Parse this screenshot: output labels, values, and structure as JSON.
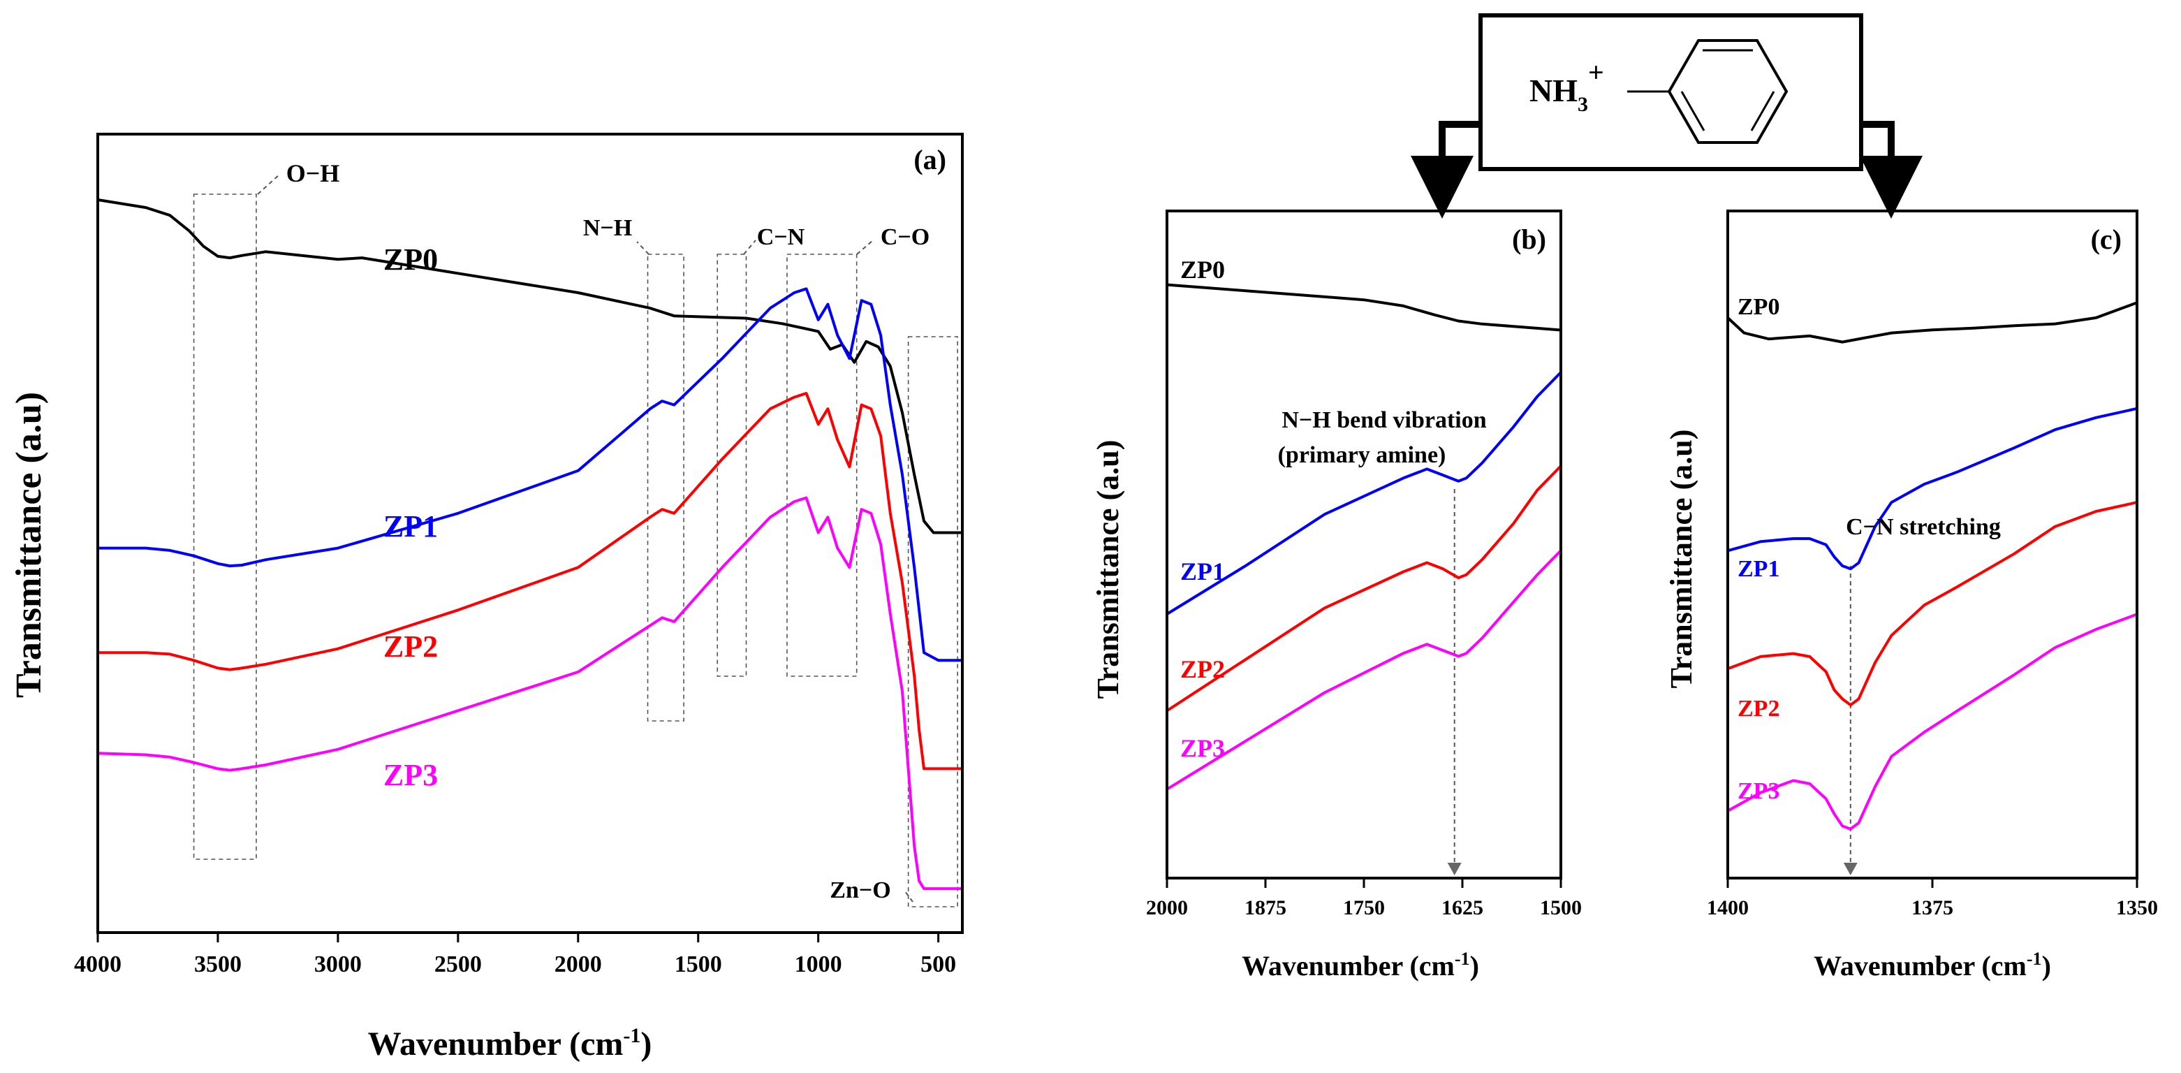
{
  "chart_data": [
    {
      "panel": "(a)",
      "type": "line",
      "xlabel": "Wavenumber (cm",
      "xlabel_sup": "-1",
      "xlabel_tail": ")",
      "ylabel": "Transmittance (a.u)",
      "xlim": [
        4000,
        400
      ],
      "x_reversed": true,
      "ylim": [
        0,
        100
      ],
      "yticks_shown": false,
      "xticks": [
        4000,
        3500,
        3000,
        2500,
        2000,
        1500,
        1000,
        500
      ],
      "series": [
        {
          "name": "ZP0",
          "color": "#000000",
          "x": [
            4000,
            3800,
            3700,
            3620,
            3560,
            3500,
            3450,
            3400,
            3300,
            3000,
            2900,
            2500,
            2000,
            1700,
            1600,
            1300,
            1150,
            1000,
            950,
            900,
            850,
            800,
            750,
            700,
            650,
            600,
            560,
            520,
            480,
            400
          ],
          "y": [
            93.5,
            92.5,
            91.5,
            89.5,
            87.5,
            86.2,
            86,
            86.3,
            86.8,
            85.8,
            86,
            84,
            81.5,
            79.5,
            78.5,
            78.2,
            77.5,
            76.5,
            74.2,
            74.8,
            72.5,
            75.2,
            74.5,
            72,
            66,
            58,
            52,
            50.5,
            50.5,
            50.5
          ]
        },
        {
          "name": "ZP1",
          "color": "#0000ff",
          "x": [
            4000,
            3800,
            3700,
            3600,
            3500,
            3450,
            3400,
            3300,
            3000,
            2500,
            2000,
            1700,
            1650,
            1600,
            1400,
            1200,
            1100,
            1050,
            1000,
            960,
            920,
            870,
            820,
            780,
            740,
            700,
            650,
            600,
            560,
            500,
            400
          ],
          "y": [
            48.5,
            48.5,
            48.2,
            47.5,
            46.5,
            46.2,
            46.3,
            47,
            48.5,
            53,
            58.5,
            66.5,
            67.5,
            67,
            73,
            79.5,
            81.5,
            82,
            78,
            80,
            76,
            73,
            80.5,
            80,
            76,
            67,
            58,
            46,
            35,
            34,
            34
          ]
        },
        {
          "name": "ZP2",
          "color": "#ff0000",
          "x": [
            4000,
            3800,
            3700,
            3600,
            3500,
            3450,
            3400,
            3300,
            3000,
            2500,
            2000,
            1700,
            1650,
            1600,
            1400,
            1200,
            1100,
            1050,
            1000,
            960,
            920,
            870,
            820,
            780,
            740,
            700,
            650,
            600,
            580,
            560,
            500,
            400
          ],
          "y": [
            35,
            35,
            34.8,
            34,
            33,
            32.8,
            33,
            33.5,
            35.5,
            40.5,
            46,
            52.5,
            53.5,
            53,
            60,
            66.5,
            68,
            68.5,
            64.5,
            66.5,
            62.5,
            59,
            67,
            66.5,
            63,
            53,
            44,
            32,
            25,
            20,
            20,
            20
          ]
        },
        {
          "name": "ZP3",
          "color": "#ff00ff",
          "x": [
            4000,
            3800,
            3700,
            3600,
            3500,
            3450,
            3400,
            3300,
            3000,
            2500,
            2000,
            1700,
            1650,
            1600,
            1400,
            1200,
            1100,
            1050,
            1000,
            960,
            920,
            870,
            820,
            780,
            740,
            700,
            650,
            600,
            580,
            560,
            500,
            400
          ],
          "y": [
            22,
            21.8,
            21.5,
            20.8,
            20,
            19.8,
            20,
            20.5,
            22.5,
            27.5,
            32.5,
            38.5,
            39.5,
            39,
            46,
            52.5,
            54.5,
            55,
            50.5,
            52.5,
            48.5,
            46,
            53.5,
            53,
            49,
            40,
            30,
            10,
            5.5,
            4.5,
            4.5,
            4.5
          ]
        }
      ],
      "series_labels": [
        "ZP0",
        "ZP1",
        "ZP2",
        "ZP3"
      ],
      "annotations": [
        {
          "text": "O−H",
          "from": 3600,
          "to": 3340
        },
        {
          "text": "N−H",
          "from": 1710,
          "to": 1560
        },
        {
          "text": "C−N",
          "from": 1420,
          "to": 1300
        },
        {
          "text": "C−O",
          "from": 1130,
          "to": 840
        },
        {
          "text": "Zn−O",
          "from": 625,
          "to": 420
        }
      ]
    },
    {
      "panel": "(b)",
      "type": "line",
      "xlabel": "Wavenumber (cm",
      "xlabel_sup": "-1",
      "xlabel_tail": ")",
      "ylabel": "Transmittance (a.u)",
      "xlim": [
        2000,
        1500
      ],
      "x_reversed": true,
      "ylim": [
        0,
        100
      ],
      "yticks_shown": false,
      "xticks": [
        2000,
        1875,
        1750,
        1625,
        1500
      ],
      "series": [
        {
          "name": "ZP0",
          "color": "#000000",
          "x": [
            2000,
            1900,
            1800,
            1750,
            1700,
            1660,
            1630,
            1600,
            1550,
            1500
          ],
          "y": [
            94.5,
            93.5,
            92.5,
            92,
            91,
            89.5,
            88.5,
            88,
            87.5,
            87
          ]
        },
        {
          "name": "ZP1",
          "color": "#0000ff",
          "x": [
            2000,
            1900,
            1800,
            1700,
            1670,
            1650,
            1630,
            1620,
            1600,
            1560,
            1530,
            1500
          ],
          "y": [
            40,
            48,
            56.5,
            62.5,
            64,
            63,
            62,
            62.5,
            65,
            71,
            76,
            80
          ]
        },
        {
          "name": "ZP2",
          "color": "#ff0000",
          "x": [
            2000,
            1900,
            1800,
            1700,
            1670,
            1650,
            1630,
            1620,
            1600,
            1560,
            1530,
            1500
          ],
          "y": [
            24,
            32.5,
            41,
            47,
            48.5,
            47.5,
            46,
            46.5,
            49,
            55,
            60.5,
            64.5
          ]
        },
        {
          "name": "ZP3",
          "color": "#ff00ff",
          "x": [
            2000,
            1900,
            1800,
            1700,
            1670,
            1650,
            1630,
            1620,
            1600,
            1560,
            1530,
            1500
          ],
          "y": [
            11,
            19,
            27,
            33.5,
            35,
            34,
            33,
            33.5,
            36,
            42,
            46.5,
            50.5
          ]
        }
      ],
      "series_labels": [
        "ZP0",
        "ZP1",
        "ZP2",
        "ZP3"
      ],
      "annotation_line1": "N−H bend vibration",
      "annotation_line2": "(primary amine)",
      "marker_x": 1635
    },
    {
      "panel": "(c)",
      "type": "line",
      "xlabel": "Wavenumber (cm",
      "xlabel_sup": "-1",
      "xlabel_tail": ")",
      "ylabel": "Transmittance (a.u)",
      "xlim": [
        1400,
        1350
      ],
      "x_reversed": true,
      "ylim": [
        0,
        100
      ],
      "yticks_shown": false,
      "xticks": [
        1400,
        1375,
        1350
      ],
      "series": [
        {
          "name": "ZP0",
          "color": "#000000",
          "x": [
            1400,
            1398,
            1395,
            1390,
            1386,
            1380,
            1375,
            1370,
            1365,
            1360,
            1355,
            1352,
            1350
          ],
          "y": [
            89.5,
            87,
            86,
            86.5,
            85.5,
            87,
            87.5,
            87.8,
            88.2,
            88.5,
            89.5,
            91,
            92
          ]
        },
        {
          "name": "ZP1",
          "color": "#0000ff",
          "x": [
            1400,
            1396,
            1392,
            1390,
            1388,
            1387,
            1386,
            1385,
            1384,
            1382,
            1380,
            1376,
            1372,
            1365,
            1360,
            1355,
            1350
          ],
          "y": [
            51,
            52.5,
            53,
            53,
            52,
            50,
            48.5,
            48,
            49,
            55,
            59,
            62,
            64,
            68,
            71,
            73,
            74.5
          ]
        },
        {
          "name": "ZP2",
          "color": "#ff0000",
          "x": [
            1400,
            1396,
            1392,
            1390,
            1388,
            1387,
            1386,
            1385,
            1384,
            1382,
            1380,
            1376,
            1372,
            1365,
            1360,
            1355,
            1350
          ],
          "y": [
            31.5,
            33.5,
            34,
            33.5,
            31,
            28,
            26.5,
            25.5,
            26.5,
            32.5,
            37,
            42,
            45,
            50.5,
            55,
            57.5,
            59
          ]
        },
        {
          "name": "ZP3",
          "color": "#ff00ff",
          "x": [
            1400,
            1396,
            1392,
            1390,
            1388,
            1387,
            1386,
            1385,
            1384,
            1382,
            1380,
            1376,
            1372,
            1365,
            1360,
            1355,
            1350
          ],
          "y": [
            8,
            11,
            13,
            12.5,
            10,
            7.5,
            5.5,
            5,
            6,
            12,
            17,
            21,
            24.5,
            30.5,
            35,
            38,
            40.5
          ]
        }
      ],
      "series_labels": [
        "ZP0",
        "ZP1",
        "ZP2",
        "ZP3"
      ],
      "annotation": "C−N stretching",
      "marker_x": 1385
    }
  ],
  "structure": {
    "ammonium": "NH",
    "subscript": "3",
    "charge": "+"
  }
}
